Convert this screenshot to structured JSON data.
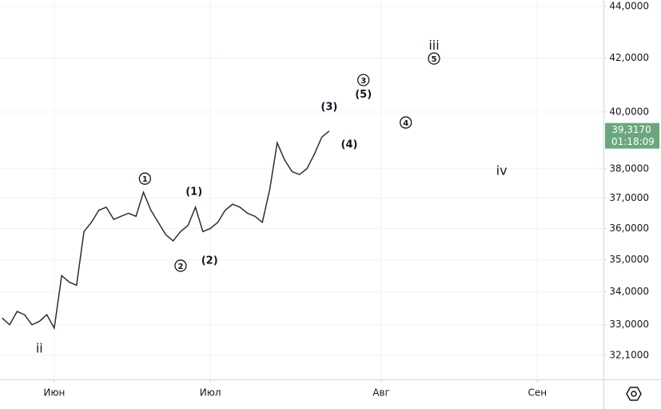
{
  "chart_data": {
    "type": "line",
    "log_scale": true,
    "grid": true,
    "x": [
      -7,
      -6,
      -5,
      -4,
      -3,
      -2,
      -1,
      0,
      1,
      2,
      3,
      4,
      5,
      6,
      7,
      8,
      9,
      10,
      11,
      12,
      13,
      14,
      15,
      16,
      17,
      18,
      19,
      20,
      21,
      22,
      23,
      24,
      25,
      26,
      27,
      28,
      29,
      30,
      31,
      32,
      33,
      34,
      35,
      36,
      37
    ],
    "series": [
      {
        "color": "#2a2e39",
        "values": [
          33.2,
          33.0,
          33.4,
          33.3,
          33.0,
          33.1,
          33.3,
          32.9,
          34.5,
          34.3,
          34.2,
          35.9,
          36.2,
          36.6,
          36.7,
          36.3,
          36.4,
          36.5,
          36.4,
          37.2,
          36.6,
          36.2,
          35.8,
          35.6,
          35.9,
          36.1,
          36.7,
          35.9,
          36.0,
          36.2,
          36.6,
          36.8,
          36.7,
          36.5,
          36.4,
          36.2,
          37.3,
          38.9,
          38.3,
          37.9,
          37.8,
          38.0,
          38.5,
          39.1,
          39.317
        ]
      }
    ],
    "xlim": [
      -7.3,
      73.9
    ],
    "xticks": [
      {
        "value": 0,
        "label": "Июн"
      },
      {
        "value": 21,
        "label": "Июл"
      },
      {
        "value": 44,
        "label": "Авг"
      },
      {
        "value": 65,
        "label": "Сен"
      }
    ],
    "ylim": [
      31.41,
      44.26
    ],
    "yticks": [
      {
        "value": 32.1,
        "label": "32,1000"
      },
      {
        "value": 33,
        "label": "33,0000"
      },
      {
        "value": 34,
        "label": "34,0000"
      },
      {
        "value": 35,
        "label": "35,0000"
      },
      {
        "value": 36,
        "label": "36,0000"
      },
      {
        "value": 37,
        "label": "37,0000"
      },
      {
        "value": 38,
        "label": "38,0000"
      },
      {
        "value": 40,
        "label": "40,0000"
      },
      {
        "value": 42,
        "label": "42,0000"
      },
      {
        "value": 44,
        "label": "44,0000"
      }
    ],
    "last_price": {
      "value": 39.317,
      "label": "39,3170",
      "countdown": "01:18:09",
      "color": "#6aa77d"
    },
    "annotations": [
      {
        "text": "ii",
        "x": -2.0,
        "y": 32.31,
        "circled": false
      },
      {
        "text": "1",
        "x": 12.2,
        "y": 37.66,
        "circled": true
      },
      {
        "text": "(1)",
        "x": 18.8,
        "y": 37.23,
        "circled": false
      },
      {
        "text": "2",
        "x": 17.0,
        "y": 34.81,
        "circled": true
      },
      {
        "text": "(2)",
        "x": 20.9,
        "y": 34.99,
        "circled": false
      },
      {
        "text": "(3)",
        "x": 37.0,
        "y": 40.2,
        "circled": false
      },
      {
        "text": "(4)",
        "x": 39.7,
        "y": 38.85,
        "circled": false
      },
      {
        "text": "3",
        "x": 41.6,
        "y": 41.17,
        "circled": true
      },
      {
        "text": "(5)",
        "x": 41.6,
        "y": 40.66,
        "circled": false
      },
      {
        "text": "4",
        "x": 47.3,
        "y": 39.62,
        "circled": true
      },
      {
        "text": "iii",
        "x": 51.1,
        "y": 42.49,
        "circled": false
      },
      {
        "text": "5",
        "x": 51.1,
        "y": 41.98,
        "circled": true
      },
      {
        "text": "iv",
        "x": 60.2,
        "y": 37.94,
        "circled": false
      }
    ]
  }
}
